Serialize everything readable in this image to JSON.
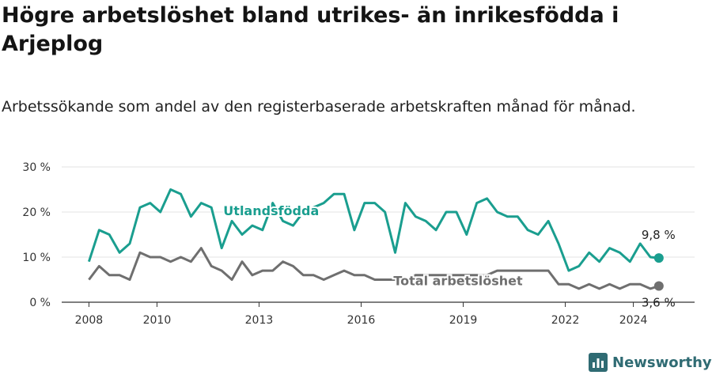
{
  "title": "Högre arbetslöshet bland utrikes- än inrikesfödda i Arjeplog",
  "subtitle": "Arbetssökande som andel av den registerbaserade arbetskraften månad för månad.",
  "brand": {
    "name": "Newsworthy",
    "icon": "bar-chart-logo-icon",
    "color": "#2f6b73"
  },
  "chart_data": {
    "type": "line",
    "x_unit": "year (fractional, monthly)",
    "xlim": [
      2007.2,
      2025.8
    ],
    "ylim": [
      0,
      30
    ],
    "xticks": [
      {
        "value": 2008,
        "label": "2008"
      },
      {
        "value": 2010,
        "label": "2010"
      },
      {
        "value": 2013,
        "label": "2013"
      },
      {
        "value": 2016,
        "label": "2016"
      },
      {
        "value": 2019,
        "label": "2019"
      },
      {
        "value": 2022,
        "label": "2022"
      },
      {
        "value": 2024,
        "label": "2024"
      }
    ],
    "yticks": [
      {
        "value": 0,
        "label": "0 %"
      },
      {
        "value": 10,
        "label": "10 %"
      },
      {
        "value": 20,
        "label": "20 %"
      },
      {
        "value": 30,
        "label": "30 %"
      }
    ],
    "grid": true,
    "series": [
      {
        "name": "Utlandsfödda",
        "color": "#1a9e8f",
        "label_anchor": {
          "x": 2011.95,
          "y": 19.3
        },
        "end_label": "9,8 %",
        "x": [
          2008.0,
          2008.3,
          2008.6,
          2008.9,
          2009.2,
          2009.5,
          2009.8,
          2010.1,
          2010.4,
          2010.7,
          2011.0,
          2011.3,
          2011.6,
          2011.9,
          2012.2,
          2012.5,
          2012.8,
          2013.1,
          2013.4,
          2013.7,
          2014.0,
          2014.3,
          2014.6,
          2014.9,
          2015.2,
          2015.5,
          2015.8,
          2016.1,
          2016.4,
          2016.7,
          2017.0,
          2017.3,
          2017.6,
          2017.9,
          2018.2,
          2018.5,
          2018.8,
          2019.1,
          2019.4,
          2019.7,
          2020.0,
          2020.3,
          2020.6,
          2020.9,
          2021.2,
          2021.5,
          2021.8,
          2022.1,
          2022.4,
          2022.7,
          2023.0,
          2023.3,
          2023.6,
          2023.9,
          2024.2,
          2024.5,
          2024.75
        ],
        "values": [
          9,
          16,
          15,
          11,
          13,
          21,
          22,
          20,
          25,
          24,
          19,
          22,
          21,
          12,
          18,
          15,
          17,
          16,
          22,
          18,
          17,
          20,
          21,
          22,
          24,
          24,
          16,
          22,
          22,
          20,
          11,
          22,
          19,
          18,
          16,
          20,
          20,
          15,
          22,
          23,
          20,
          19,
          19,
          16,
          15,
          18,
          13,
          7,
          8,
          11,
          9,
          12,
          11,
          9,
          13,
          10,
          9.8
        ]
      },
      {
        "name": "Total arbetslöshet",
        "color": "#6f6f6f",
        "label_anchor": {
          "x": 2016.95,
          "y": 3.8
        },
        "end_label": "3,6 %",
        "x": [
          2008.0,
          2008.3,
          2008.6,
          2008.9,
          2009.2,
          2009.5,
          2009.8,
          2010.1,
          2010.4,
          2010.7,
          2011.0,
          2011.3,
          2011.6,
          2011.9,
          2012.2,
          2012.5,
          2012.8,
          2013.1,
          2013.4,
          2013.7,
          2014.0,
          2014.3,
          2014.6,
          2014.9,
          2015.2,
          2015.5,
          2015.8,
          2016.1,
          2016.4,
          2016.7,
          2017.0,
          2017.3,
          2017.6,
          2017.9,
          2018.2,
          2018.5,
          2018.8,
          2019.1,
          2019.4,
          2019.7,
          2020.0,
          2020.3,
          2020.6,
          2020.9,
          2021.2,
          2021.5,
          2021.8,
          2022.1,
          2022.4,
          2022.7,
          2023.0,
          2023.3,
          2023.6,
          2023.9,
          2024.2,
          2024.5,
          2024.75
        ],
        "values": [
          5,
          8,
          6,
          6,
          5,
          11,
          10,
          10,
          9,
          10,
          9,
          12,
          8,
          7,
          5,
          9,
          6,
          7,
          7,
          9,
          8,
          6,
          6,
          5,
          6,
          7,
          6,
          6,
          5,
          5,
          5,
          5,
          6,
          6,
          6,
          6,
          6,
          6,
          6,
          6,
          7,
          7,
          7,
          7,
          7,
          7,
          4,
          4,
          3,
          4,
          3,
          4,
          3,
          4,
          4,
          3,
          3.6
        ]
      }
    ]
  }
}
